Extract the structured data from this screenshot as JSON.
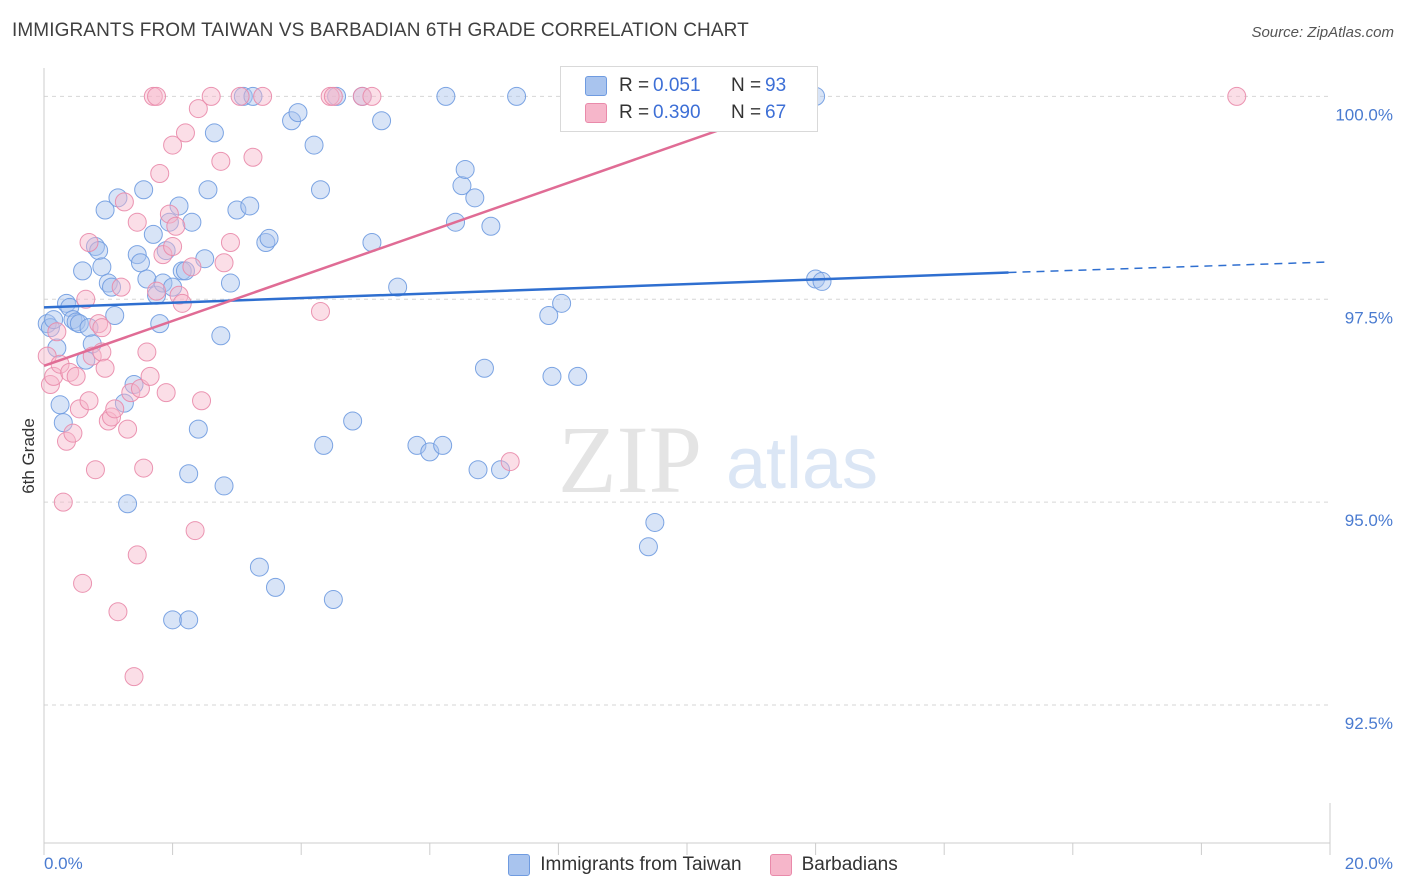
{
  "header": {
    "title": "IMMIGRANTS FROM TAIWAN VS BARBADIAN 6TH GRADE CORRELATION CHART",
    "source": "Source: ZipAtlas.com"
  },
  "watermark": {
    "zip": "ZIP",
    "atlas": "atlas"
  },
  "legend": {
    "rows": [
      {
        "r_label": "R =",
        "r_value": "0.051",
        "n_label": "N =",
        "n_value": "93"
      },
      {
        "r_label": "R =",
        "r_value": "0.390",
        "n_label": "N =",
        "n_value": "67"
      }
    ]
  },
  "colors": {
    "blue_fill": "#a9c4ee",
    "blue_stroke": "#6f9be0",
    "blue_line": "#2f6fd0",
    "pink_fill": "#f6b6ca",
    "pink_stroke": "#e98aaa",
    "pink_line": "#e06c95",
    "grid": "#d6d6d6",
    "tick_text": "#4a7bd0"
  },
  "chart_data": {
    "type": "scatter",
    "title": "IMMIGRANTS FROM TAIWAN VS BARBADIAN 6TH GRADE CORRELATION CHART",
    "xlabel": "",
    "ylabel": "6th Grade",
    "xlim": [
      0,
      20
    ],
    "ylim": [
      90.8,
      100.35
    ],
    "x_tick_labels": [
      "0.0%",
      "20.0%"
    ],
    "y_ticks": [
      {
        "value": 100.0,
        "label": "100.0%"
      },
      {
        "value": 97.5,
        "label": "97.5%"
      },
      {
        "value": 95.0,
        "label": "95.0%"
      },
      {
        "value": 92.5,
        "label": "92.5%"
      }
    ],
    "legend_position": "top-center",
    "series": [
      {
        "name": "Immigrants from Taiwan",
        "color": "blue",
        "R": 0.051,
        "N": 93,
        "trend": {
          "x0": 0,
          "y0": 97.4,
          "x1": 15.0,
          "y1": 97.83,
          "dashed_to_x": 20,
          "dashed_y1": 97.96
        },
        "points": [
          [
            0.05,
            97.2
          ],
          [
            0.1,
            97.15
          ],
          [
            0.15,
            97.25
          ],
          [
            0.2,
            96.9
          ],
          [
            0.25,
            96.2
          ],
          [
            0.3,
            95.98
          ],
          [
            0.35,
            97.45
          ],
          [
            0.4,
            97.4
          ],
          [
            0.45,
            97.25
          ],
          [
            0.5,
            97.22
          ],
          [
            0.55,
            97.2
          ],
          [
            0.6,
            97.85
          ],
          [
            0.65,
            96.75
          ],
          [
            0.7,
            97.15
          ],
          [
            0.75,
            96.95
          ],
          [
            0.8,
            98.15
          ],
          [
            0.85,
            98.1
          ],
          [
            0.9,
            97.9
          ],
          [
            0.95,
            98.6
          ],
          [
            1.0,
            97.7
          ],
          [
            1.05,
            97.65
          ],
          [
            1.1,
            97.3
          ],
          [
            1.15,
            98.75
          ],
          [
            1.25,
            96.22
          ],
          [
            1.3,
            94.98
          ],
          [
            1.4,
            96.45
          ],
          [
            1.45,
            98.05
          ],
          [
            1.5,
            97.95
          ],
          [
            1.55,
            98.85
          ],
          [
            1.6,
            97.75
          ],
          [
            1.7,
            98.3
          ],
          [
            1.75,
            97.55
          ],
          [
            1.8,
            97.2
          ],
          [
            1.85,
            97.7
          ],
          [
            1.9,
            98.1
          ],
          [
            1.95,
            98.45
          ],
          [
            2.0,
            97.65
          ],
          [
            2.1,
            98.65
          ],
          [
            2.15,
            97.85
          ],
          [
            2.2,
            97.85
          ],
          [
            2.25,
            95.35
          ],
          [
            2.3,
            98.45
          ],
          [
            2.4,
            95.9
          ],
          [
            2.5,
            98.0
          ],
          [
            2.55,
            98.85
          ],
          [
            2.65,
            99.55
          ],
          [
            2.75,
            97.05
          ],
          [
            2.8,
            95.2
          ],
          [
            2.9,
            97.7
          ],
          [
            3.0,
            98.6
          ],
          [
            3.1,
            100.0
          ],
          [
            3.2,
            98.65
          ],
          [
            3.25,
            100.0
          ],
          [
            3.35,
            94.2
          ],
          [
            3.45,
            98.2
          ],
          [
            3.5,
            98.25
          ],
          [
            3.6,
            93.95
          ],
          [
            3.85,
            99.7
          ],
          [
            3.95,
            99.8
          ],
          [
            4.2,
            99.4
          ],
          [
            4.3,
            98.85
          ],
          [
            4.35,
            95.7
          ],
          [
            4.5,
            93.8
          ],
          [
            4.55,
            100.0
          ],
          [
            4.8,
            96.0
          ],
          [
            4.95,
            100.0
          ],
          [
            5.1,
            98.2
          ],
          [
            5.25,
            99.7
          ],
          [
            5.5,
            97.65
          ],
          [
            5.8,
            95.7
          ],
          [
            6.0,
            95.62
          ],
          [
            6.2,
            95.7
          ],
          [
            6.25,
            100.0
          ],
          [
            6.4,
            98.45
          ],
          [
            6.5,
            98.9
          ],
          [
            6.55,
            99.1
          ],
          [
            6.7,
            98.75
          ],
          [
            6.75,
            95.4
          ],
          [
            6.85,
            96.65
          ],
          [
            6.95,
            98.4
          ],
          [
            7.1,
            95.4
          ],
          [
            7.35,
            100.0
          ],
          [
            7.85,
            97.3
          ],
          [
            7.9,
            96.55
          ],
          [
            8.05,
            97.45
          ],
          [
            8.3,
            96.55
          ],
          [
            9.4,
            94.45
          ],
          [
            9.5,
            94.75
          ],
          [
            12.0,
            100.0
          ],
          [
            12.0,
            97.75
          ],
          [
            12.1,
            97.72
          ],
          [
            2.0,
            93.55
          ],
          [
            2.25,
            93.55
          ]
        ]
      },
      {
        "name": "Barbadians",
        "color": "pink",
        "R": 0.39,
        "N": 67,
        "trend": {
          "x0": 0,
          "y0": 96.68,
          "x1": 12.0,
          "y1": 100.0
        },
        "points": [
          [
            0.05,
            96.8
          ],
          [
            0.1,
            96.45
          ],
          [
            0.15,
            96.55
          ],
          [
            0.2,
            97.1
          ],
          [
            0.25,
            96.7
          ],
          [
            0.3,
            95.0
          ],
          [
            0.35,
            95.75
          ],
          [
            0.4,
            96.6
          ],
          [
            0.45,
            95.85
          ],
          [
            0.5,
            96.55
          ],
          [
            0.55,
            96.15
          ],
          [
            0.6,
            94.0
          ],
          [
            0.65,
            97.5
          ],
          [
            0.7,
            98.2
          ],
          [
            0.75,
            96.8
          ],
          [
            0.8,
            95.4
          ],
          [
            0.85,
            97.2
          ],
          [
            0.9,
            96.85
          ],
          [
            0.95,
            96.65
          ],
          [
            1.0,
            96.0
          ],
          [
            1.05,
            96.05
          ],
          [
            1.1,
            96.15
          ],
          [
            1.15,
            93.65
          ],
          [
            1.2,
            97.65
          ],
          [
            1.25,
            98.7
          ],
          [
            1.3,
            95.9
          ],
          [
            1.35,
            96.35
          ],
          [
            1.4,
            92.85
          ],
          [
            1.45,
            94.35
          ],
          [
            1.5,
            96.4
          ],
          [
            1.55,
            95.42
          ],
          [
            1.6,
            96.85
          ],
          [
            1.65,
            96.55
          ],
          [
            1.7,
            100.0
          ],
          [
            1.75,
            100.0
          ],
          [
            1.8,
            99.05
          ],
          [
            1.85,
            98.05
          ],
          [
            1.9,
            96.35
          ],
          [
            2.0,
            99.4
          ],
          [
            2.1,
            97.55
          ],
          [
            2.15,
            97.45
          ],
          [
            2.2,
            99.55
          ],
          [
            2.3,
            97.9
          ],
          [
            2.35,
            94.65
          ],
          [
            2.4,
            99.85
          ],
          [
            2.45,
            96.25
          ],
          [
            2.6,
            100.0
          ],
          [
            2.75,
            99.2
          ],
          [
            2.8,
            97.95
          ],
          [
            2.9,
            98.2
          ],
          [
            3.05,
            100.0
          ],
          [
            3.25,
            99.25
          ],
          [
            3.4,
            100.0
          ],
          [
            4.3,
            97.35
          ],
          [
            4.45,
            100.0
          ],
          [
            4.5,
            100.0
          ],
          [
            4.95,
            100.0
          ],
          [
            5.1,
            100.0
          ],
          [
            7.25,
            95.5
          ],
          [
            18.55,
            100.0
          ],
          [
            1.75,
            97.6
          ],
          [
            2.0,
            98.15
          ],
          [
            0.9,
            97.15
          ],
          [
            1.45,
            98.45
          ],
          [
            1.95,
            98.55
          ],
          [
            2.05,
            98.4
          ],
          [
            0.7,
            96.25
          ]
        ]
      }
    ]
  },
  "bottom_legend": {
    "items": [
      "Immigrants from Taiwan",
      "Barbadians"
    ]
  }
}
